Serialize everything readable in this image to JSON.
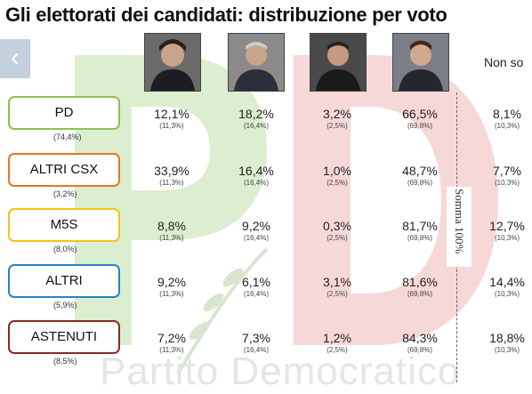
{
  "title": "Gli elettorati dei candidati: distribuzione per voto",
  "watermark": "Partito Democratico",
  "logo_text": "PD",
  "nav": {
    "prev_icon": "‹"
  },
  "columns": {
    "photos": [
      "candidate-1-photo",
      "candidate-2-photo",
      "candidate-3-photo",
      "candidate-4-photo"
    ],
    "non_so": "Non so"
  },
  "somma_label": "Somma 100%",
  "rows": [
    {
      "label": "PD",
      "share": "(74,4%)",
      "color": "#8cc152",
      "values": [
        "12,1%",
        "18,2%",
        "3,2%",
        "66,5%",
        "8,1%"
      ],
      "subs": [
        "(11,3%)",
        "(16,4%)",
        "(2,5%)",
        "(69,8%)",
        "(10,3%)"
      ]
    },
    {
      "label": "ALTRI CSX",
      "share": "(3,2%)",
      "color": "#e8742a",
      "values": [
        "33,9%",
        "16,4%",
        "1,0%",
        "48,7%",
        "7,7%"
      ],
      "subs": [
        "(11,3%)",
        "(16,4%)",
        "(2,5%)",
        "(69,8%)",
        "(10,3%)"
      ]
    },
    {
      "label": "M5S",
      "share": "(8,0%)",
      "color": "#f2c21b",
      "values": [
        "8,8%",
        "9,2%",
        "0,3%",
        "81,7%",
        "12,7%"
      ],
      "subs": [
        "(11,3%)",
        "(16,4%)",
        "(2,5%)",
        "(69,8%)",
        "(10,3%)"
      ]
    },
    {
      "label": "ALTRI",
      "share": "(5,9%)",
      "color": "#2e7fc1",
      "values": [
        "9,2%",
        "6,1%",
        "3,1%",
        "81,6%",
        "14,4%"
      ],
      "subs": [
        "(11,3%)",
        "(16,4%)",
        "(2,5%)",
        "(69,8%)",
        "(10,3%)"
      ]
    },
    {
      "label": "ASTENUTI",
      "share": "(8,5%)",
      "color": "#8b2a1a",
      "values": [
        "7,2%",
        "7,3%",
        "1,2%",
        "84,3%",
        "18,8%"
      ],
      "subs": [
        "(11,3%)",
        "(16,4%)",
        "(2,5%)",
        "(69,8%)",
        "(10,3%)"
      ]
    }
  ]
}
